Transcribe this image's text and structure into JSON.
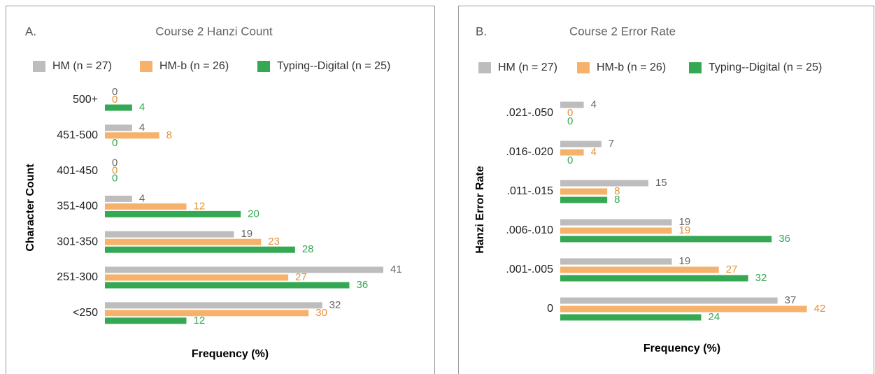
{
  "chart_data": [
    {
      "type": "bar",
      "orientation": "horizontal",
      "panel_label": "A.",
      "title": "Course 2 Hanzi Count",
      "y_label": "Character Count",
      "x_label": "Frequency (%)",
      "categories": [
        "500+",
        "451-500",
        "401-450",
        "351-400",
        "301-350",
        "251-300",
        "<250"
      ],
      "series": [
        {
          "name": "HM (n = 27)",
          "color": "#bdbdbd",
          "values": [
            0,
            4,
            0,
            4,
            19,
            41,
            32
          ]
        },
        {
          "name": "HM-b (n = 26)",
          "color": "#f6b26b",
          "values": [
            0,
            8,
            0,
            12,
            23,
            27,
            30
          ]
        },
        {
          "name": "Typing--Digital (n = 25)",
          "color": "#34a853",
          "values": [
            4,
            0,
            0,
            20,
            28,
            36,
            12
          ]
        }
      ],
      "xlim": [
        0,
        48
      ],
      "legend": "top"
    },
    {
      "type": "bar",
      "orientation": "horizontal",
      "panel_label": "B.",
      "title": "Course 2  Error Rate",
      "y_label": "Hanzi Error Rate",
      "x_label": "Frequency (%)",
      "categories": [
        ".021-.050",
        ".016-.020",
        ".011-.015",
        ".006-.010",
        ".001-.005",
        "0"
      ],
      "series": [
        {
          "name": "HM (n = 27)",
          "color": "#bdbdbd",
          "values": [
            4,
            7,
            15,
            19,
            19,
            37
          ]
        },
        {
          "name": "HM-b (n = 26)",
          "color": "#f6b26b",
          "values": [
            0,
            4,
            8,
            19,
            27,
            42
          ]
        },
        {
          "name": "Typing--Digital (n = 25)",
          "color": "#34a853",
          "values": [
            0,
            0,
            8,
            36,
            32,
            24
          ]
        }
      ],
      "xlim": [
        0,
        53
      ],
      "legend": "top"
    }
  ]
}
